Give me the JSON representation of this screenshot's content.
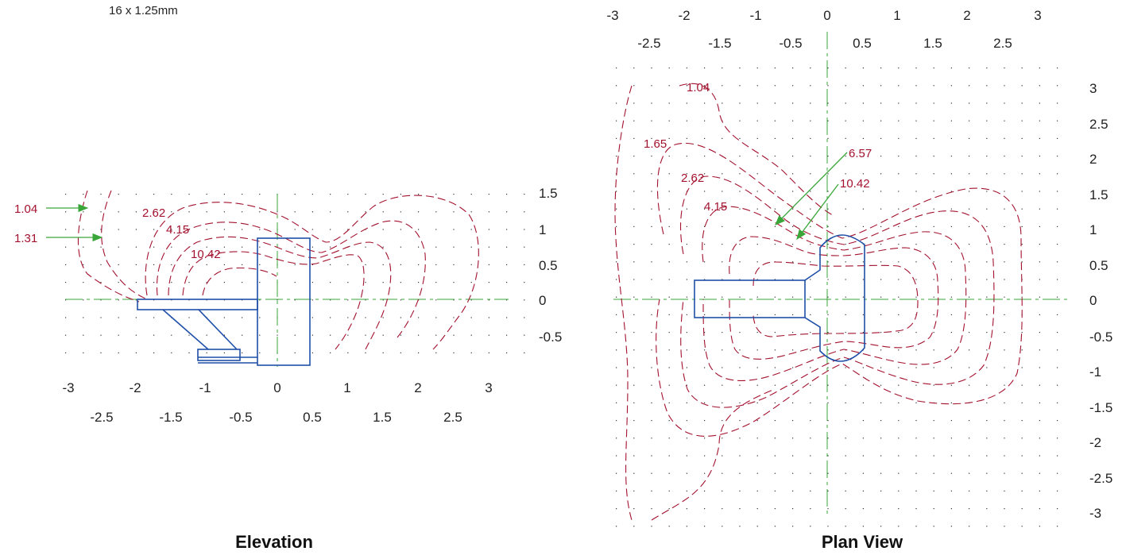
{
  "spec_label": "16 x 1.25mm",
  "colors": {
    "contour": "#a3122f",
    "hardware": "#1f4fa8",
    "axis": "#3aa63a",
    "grid_dots": "#333333"
  },
  "elevation": {
    "title": "Elevation",
    "x_ticks_upper": [
      "-3",
      "-2",
      "-1",
      "0",
      "1",
      "2",
      "3"
    ],
    "x_ticks_lower": [
      "-2.5",
      "-1.5",
      "-0.5",
      "0.5",
      "1.5",
      "2.5"
    ],
    "y_ticks": [
      "1.5",
      "1",
      "0.5",
      "0",
      "-0.5"
    ],
    "labels": [
      "1.04",
      "1.31",
      "2.62",
      "4.15",
      "10.42"
    ]
  },
  "plan": {
    "title": "Plan View",
    "x_ticks_upper": [
      "-3",
      "-2",
      "-1",
      "0",
      "1",
      "2",
      "3"
    ],
    "x_ticks_lower": [
      "-2.5",
      "-1.5",
      "-0.5",
      "0.5",
      "1.5",
      "2.5"
    ],
    "y_ticks": [
      "3",
      "2.5",
      "2",
      "1.5",
      "1",
      "0.5",
      "0",
      "-0.5",
      "-1",
      "-1.5",
      "-2",
      "-2.5",
      "-3"
    ],
    "labels": [
      "1.04",
      "1.65",
      "2.62",
      "4.15",
      "6.57",
      "10.42"
    ]
  }
}
